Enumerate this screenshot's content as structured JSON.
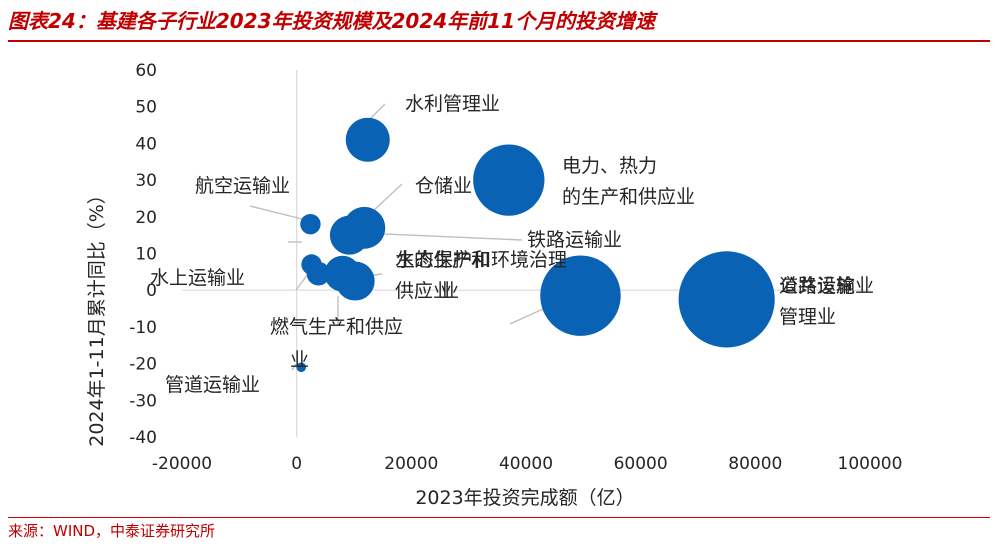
{
  "figure": {
    "title": "图表24：基建各子行业2023年投资规模及2024年前11个月的投资增速",
    "source": "来源：WIND，中泰证券研究所"
  },
  "chart_data": {
    "type": "bubble",
    "xlabel": "2023年投资完成额（亿）",
    "ylabel": "2024年1-11月累计同比（%）",
    "xlim": [
      -20000,
      100000
    ],
    "ylim": [
      -40,
      60
    ],
    "xticks": [
      "-20000",
      "0",
      "20000",
      "40000",
      "60000",
      "80000",
      "100000"
    ],
    "yticks": [
      "60",
      "50",
      "40",
      "30",
      "20",
      "10",
      "0",
      "-10",
      "-20",
      "-30",
      "-40"
    ],
    "grid": false,
    "bubble_color": "#0a62b4",
    "points": [
      {
        "name": "水利管理业",
        "x": 12400,
        "y": 41,
        "size": 0.42
      },
      {
        "name": "电力、热力的生产和供应业",
        "x": 37000,
        "y": 30,
        "size": 1.1
      },
      {
        "name": "仓储业",
        "x": 11800,
        "y": 17,
        "size": 0.38
      },
      {
        "name": "航空运输业",
        "x": 2400,
        "y": 18,
        "size": 0.09
      },
      {
        "name": "铁路运输业",
        "x": 9200,
        "y": 15,
        "size": 0.33
      },
      {
        "name": "水上运输业",
        "x": 2600,
        "y": 7,
        "size": 0.09
      },
      {
        "name": "燃气生产和供应业",
        "x": 3800,
        "y": 4.5,
        "size": 0.12
      },
      {
        "name": "生态保护和环境治理业",
        "x": 8000,
        "y": 4.5,
        "size": 0.28
      },
      {
        "name": "水的生产和供应业",
        "x": 10200,
        "y": 2.5,
        "size": 0.33
      },
      {
        "name": "道路运输业",
        "x": 49500,
        "y": -1.5,
        "size": 1.4
      },
      {
        "name": "公共设施管理业",
        "x": 75000,
        "y": -2.5,
        "size": 2.0
      },
      {
        "name": "管道运输业",
        "x": 800,
        "y": -21,
        "size": 0.02
      }
    ]
  }
}
